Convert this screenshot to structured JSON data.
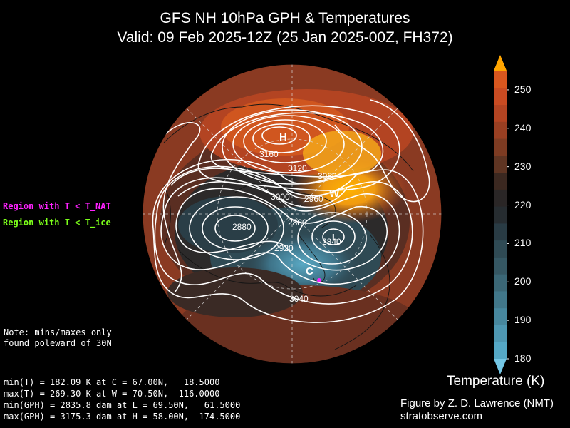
{
  "title": {
    "line1": "GFS NH 10hPa GPH & Temperatures",
    "line2": "Valid: 09 Feb 2025-12Z  (25 Jan 2025-00Z, FH372)"
  },
  "legend": {
    "nat": {
      "label": "Region with T < T_NAT",
      "color": "#ff22ff"
    },
    "ice": {
      "label": "Region with T < T_ice",
      "color": "#7cff1a"
    }
  },
  "note": {
    "line1": "Note: mins/maxes only",
    "line2": "found poleward of 30N"
  },
  "stats": {
    "min_t": "min(T) = 182.09 K at C = 67.00N,   18.5000",
    "max_t": "max(T) = 269.30 K at W = 70.50N,  116.0000",
    "min_gph": "min(GPH) = 2835.8 dam at L = 69.50N,   61.5000",
    "max_gph": "max(GPH) = 3175.3 dam at H = 58.00N, -174.5000"
  },
  "credit": {
    "line1": "Figure by Z. D. Lawrence (NMT)",
    "line2": "stratobserve.com"
  },
  "colorbar": {
    "label": "Temperature (K)",
    "ticks": [
      "250",
      "240",
      "230",
      "220",
      "210",
      "200",
      "190",
      "180"
    ],
    "min": 180,
    "max": 255,
    "extend": "both",
    "colors": [
      "#55a8c6",
      "#4e97b2",
      "#47879e",
      "#41778a",
      "#3b6776",
      "#355763",
      "#2f4a54",
      "#293b44",
      "#262c30",
      "#2a2626",
      "#3b2820",
      "#5e3422",
      "#7d3b22",
      "#993f22",
      "#b34422",
      "#c94b22",
      "#d9571f"
    ],
    "over_color": "#ffa500",
    "under_color": "#74c7e6"
  },
  "map": {
    "markers": {
      "high": "H",
      "low": "L",
      "cold": "C",
      "warm": "W"
    },
    "contour_labels": [
      "3160",
      "3120",
      "3080",
      "3000",
      "2960",
      "2880",
      "2880",
      "2920",
      "2840",
      "3040"
    ]
  }
}
